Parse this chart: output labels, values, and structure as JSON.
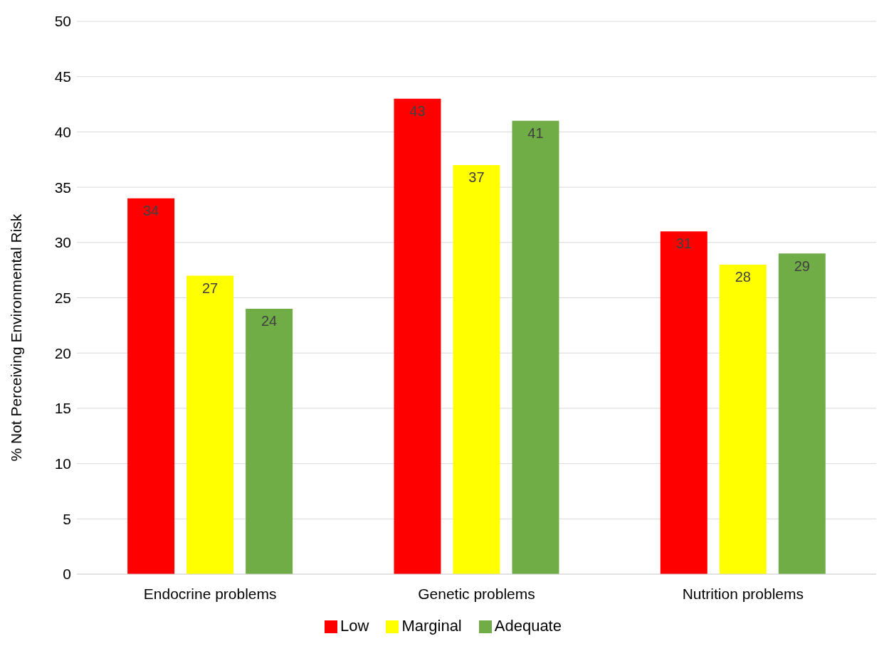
{
  "chart_data": {
    "type": "bar",
    "ylabel": "% Not Perceiving Environmental Risk",
    "categories": [
      "Endocrine problems",
      "Genetic problems",
      "Nutrition problems"
    ],
    "series": [
      {
        "name": "Low",
        "color": "#ff0000",
        "values": [
          34,
          43,
          31
        ]
      },
      {
        "name": "Marginal",
        "color": "#ffff00",
        "values": [
          27,
          37,
          28
        ]
      },
      {
        "name": "Adequate",
        "color": "#70ad47",
        "values": [
          24,
          41,
          29
        ]
      }
    ],
    "ylim": [
      0,
      50
    ],
    "yticks": [
      0,
      5,
      10,
      15,
      20,
      25,
      30,
      35,
      40,
      45,
      50
    ],
    "grid": "y",
    "legend": "bottom",
    "data_labels": true
  }
}
